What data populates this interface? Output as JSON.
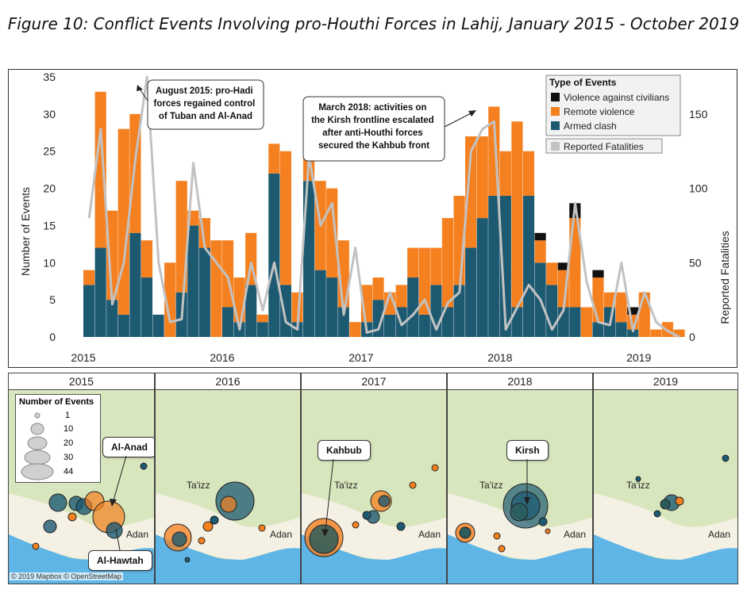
{
  "title": "Figure 10: Conflict Events Involving pro-Houthi Forces in Lahij, January 2015 - October 2019",
  "chart_data": {
    "type": "bar",
    "title": "Figure 10: Conflict Events Involving pro-Houthi Forces in Lahij, January 2015 - October 2019",
    "ylabel": "Number of Events",
    "y2label": "Reported Fatalities",
    "ylim": [
      0,
      35
    ],
    "y2lim": [
      0,
      175
    ],
    "yticks": [
      "35",
      "30",
      "25",
      "20",
      "15",
      "10",
      "5",
      "0"
    ],
    "y2ticks": [
      "150",
      "100",
      "50",
      "0"
    ],
    "xticks": [
      "2015",
      "2016",
      "2017",
      "2018",
      "2019"
    ],
    "stacked": true,
    "legend_title": "Type of Events",
    "legend_position": "top-right",
    "colors": {
      "armed": "#1d5a72",
      "remote": "#f5801f",
      "violence": "#111111",
      "fatalities": "#c2c2c2"
    },
    "series": [
      {
        "name": "Armed clash",
        "values": [
          7,
          12,
          5,
          3,
          14,
          8,
          3,
          0,
          6,
          15,
          12,
          0,
          4,
          2,
          7,
          2,
          22,
          7,
          2,
          21,
          9,
          8,
          4,
          0,
          2,
          5,
          3,
          4,
          8,
          3,
          7,
          4,
          7,
          12,
          16,
          19,
          19,
          4,
          19,
          10,
          7,
          4,
          4,
          0,
          2,
          4,
          2,
          1,
          0,
          0,
          0,
          0
        ]
      },
      {
        "name": "Remote violence",
        "values": [
          2,
          21,
          12,
          25,
          16,
          5,
          0,
          10,
          15,
          2,
          4,
          13,
          9,
          6,
          7,
          1,
          4,
          18,
          4,
          7,
          12,
          12,
          9,
          2,
          5,
          3,
          3,
          3,
          4,
          9,
          5,
          12,
          12,
          15,
          11,
          12,
          6,
          25,
          6,
          3,
          3,
          5,
          12,
          4,
          6,
          2,
          4,
          2,
          6,
          1,
          2,
          1
        ]
      },
      {
        "name": "Violence against civilians",
        "values": [
          0,
          0,
          0,
          0,
          0,
          0,
          0,
          0,
          0,
          0,
          0,
          0,
          0,
          0,
          0,
          0,
          0,
          0,
          0,
          0,
          0,
          0,
          0,
          0,
          0,
          0,
          0,
          0,
          0,
          0,
          0,
          0,
          0,
          0,
          0,
          0,
          0,
          0,
          0,
          1,
          0,
          1,
          2,
          0,
          1,
          0,
          0,
          1,
          0,
          0,
          0,
          0
        ]
      },
      {
        "name": "Reported Fatalities",
        "values": [
          80,
          140,
          22,
          50,
          120,
          175,
          50,
          10,
          12,
          117,
          60,
          50,
          40,
          5,
          50,
          18,
          50,
          10,
          5,
          122,
          75,
          90,
          15,
          60,
          3,
          5,
          30,
          8,
          15,
          25,
          5,
          23,
          30,
          125,
          140,
          145,
          5,
          20,
          35,
          25,
          5,
          18,
          90,
          37,
          10,
          8,
          50,
          4,
          30,
          10,
          4,
          0
        ]
      }
    ],
    "annotations": [
      {
        "text": "August 2015: pro-Hadi forces regained control of Tuban and Al-Anad"
      },
      {
        "text": "March 2018: activities on the Kirsh frontline escalated after anti-Houthi forces secured the Kahbub front"
      }
    ]
  },
  "maps": {
    "legend_title": "Number of Events",
    "legend_values": [
      "1",
      "10",
      "20",
      "30",
      "44"
    ],
    "panels": [
      {
        "year": "2015",
        "callouts": [
          "Al-Anad",
          "Al-Hawtah"
        ]
      },
      {
        "year": "2016",
        "callouts": []
      },
      {
        "year": "2017",
        "callouts": [
          "Kahbub"
        ]
      },
      {
        "year": "2018",
        "callouts": [
          "Kirsh"
        ]
      },
      {
        "year": "2019",
        "callouts": []
      }
    ],
    "city_taizz": "Ta'izz",
    "city_aden": "Adan",
    "copyright": "© 2019 Mapbox © OpenStreetMap"
  }
}
